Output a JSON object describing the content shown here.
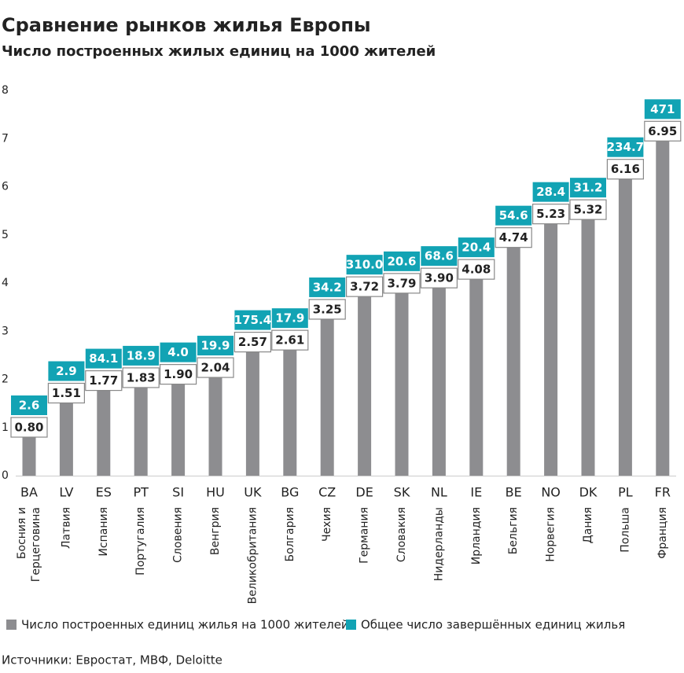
{
  "chart_data": {
    "type": "bar",
    "title": "Сравнение рынков жилья Европы",
    "subtitle": "Число построенных жилых единиц на 1000 жителей",
    "categories": [
      "BA",
      "LV",
      "ES",
      "PT",
      "SI",
      "HU",
      "UK",
      "BG",
      "CZ",
      "DE",
      "SK",
      "NL",
      "IE",
      "BE",
      "NO",
      "DK",
      "PL",
      "FR"
    ],
    "country_names": [
      "Босния и Герцеговина",
      "Латвия",
      "Испания",
      "Португалия",
      "Словения",
      "Венгрия",
      "Великобритания",
      "Болгария",
      "Чехия",
      "Германия",
      "Словакия",
      "Нидерланды",
      "Ирландия",
      "Бельгия",
      "Норвегия",
      "Дания",
      "Польша",
      "Франция"
    ],
    "series": [
      {
        "name": "Число построенных единиц жилья на 1000 жителей",
        "color": "#8d8d90",
        "values": [
          0.8,
          1.51,
          1.77,
          1.83,
          1.9,
          2.04,
          2.57,
          2.61,
          3.25,
          3.72,
          3.79,
          3.9,
          4.08,
          4.74,
          5.23,
          5.32,
          6.16,
          6.95
        ],
        "value_labels": [
          "0.80",
          "1.51",
          "1.77",
          "1.83",
          "1.90",
          "2.04",
          "2.57",
          "2.61",
          "3.25",
          "3.72",
          "3.79",
          "3.90",
          "4.08",
          "4.74",
          "5.23",
          "5.32",
          "6.16",
          "6.95"
        ]
      },
      {
        "name": "Общее число завершённых единиц жилья",
        "color": "#12a3b4",
        "values": [
          2.6,
          2.9,
          84.1,
          18.9,
          4.0,
          19.9,
          175.4,
          17.9,
          34.2,
          310.0,
          20.6,
          68.6,
          20.4,
          54.6,
          28.4,
          31.2,
          234.7,
          471
        ],
        "value_labels": [
          "2.6",
          "2.9",
          "84.1",
          "18.9",
          "4.0",
          "19.9",
          "175.4",
          "17.9",
          "34.2",
          "310.0",
          "20.6",
          "68.6",
          "20.4",
          "54.6",
          "28.4",
          "31.2",
          "234.7",
          "471"
        ]
      }
    ],
    "ylim": [
      0,
      8
    ],
    "yticks": [
      0,
      1,
      2,
      3,
      4,
      5,
      6,
      7,
      8
    ],
    "grid": false,
    "source": "Источники: Евростат, МВФ, Deloitte"
  }
}
